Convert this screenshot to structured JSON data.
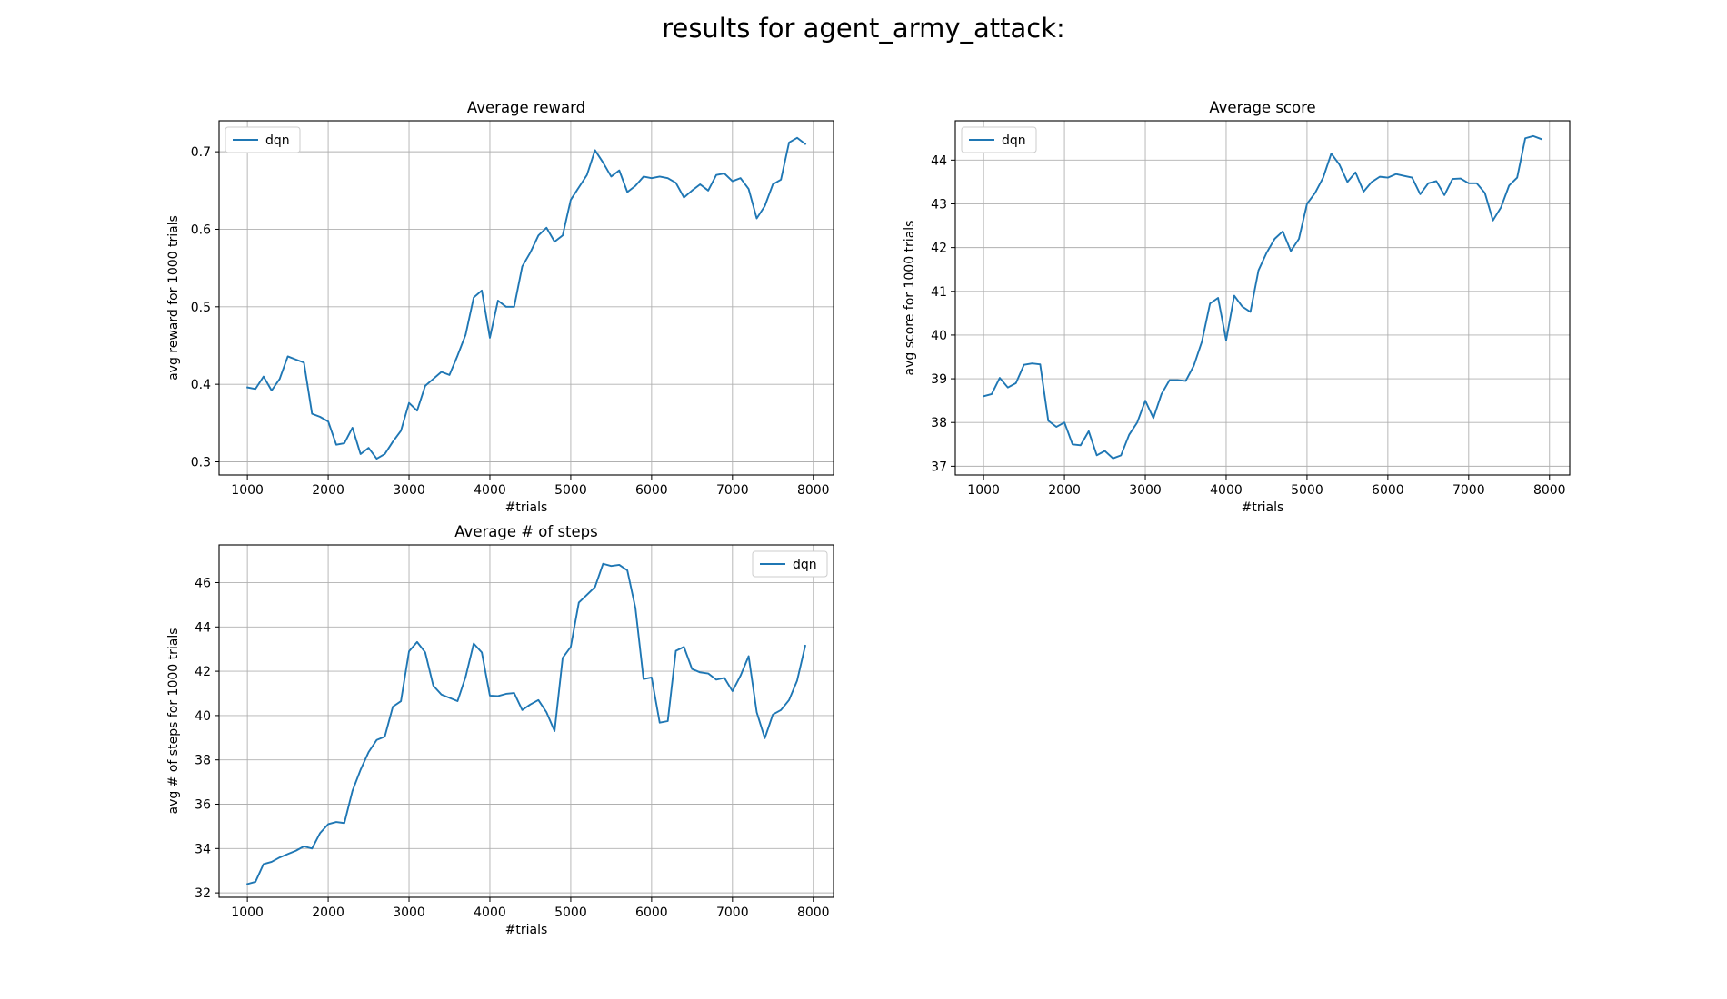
{
  "suptitle": "results for agent_army_attack:",
  "colors": {
    "series": "#1f77b4",
    "grid": "#b0b0b0",
    "frame": "#000000"
  },
  "chart_data": [
    {
      "type": "line",
      "title": "Average reward",
      "xlabel": "#trials",
      "ylabel": "avg reward for 1000 trials",
      "xlim": [
        650,
        8250
      ],
      "ylim": [
        0.283,
        0.74
      ],
      "xticks": [
        1000,
        2000,
        3000,
        4000,
        5000,
        6000,
        7000,
        8000
      ],
      "yticks": [
        0.3,
        0.4,
        0.5,
        0.6,
        0.7
      ],
      "ytick_labels": [
        "0.3",
        "0.4",
        "0.5",
        "0.6",
        "0.7"
      ],
      "grid": true,
      "legend_loc": "top-left",
      "series": [
        {
          "name": "dqn",
          "x": [
            1000,
            1100,
            1200,
            1300,
            1400,
            1500,
            1600,
            1700,
            1800,
            1900,
            2000,
            2100,
            2200,
            2300,
            2400,
            2500,
            2600,
            2700,
            2800,
            2900,
            3000,
            3100,
            3200,
            3300,
            3400,
            3500,
            3600,
            3700,
            3800,
            3900,
            4000,
            4100,
            4200,
            4300,
            4400,
            4500,
            4600,
            4700,
            4800,
            4900,
            5000,
            5100,
            5200,
            5300,
            5400,
            5500,
            5600,
            5700,
            5800,
            5900,
            6000,
            6100,
            6200,
            6300,
            6400,
            6500,
            6600,
            6700,
            6800,
            6900,
            7000,
            7100,
            7200,
            7300,
            7400,
            7500,
            7600,
            7700,
            7800,
            7900
          ],
          "values": [
            0.396,
            0.394,
            0.41,
            0.392,
            0.407,
            0.436,
            0.432,
            0.428,
            0.362,
            0.358,
            0.352,
            0.322,
            0.324,
            0.344,
            0.31,
            0.318,
            0.304,
            0.31,
            0.326,
            0.34,
            0.376,
            0.366,
            0.398,
            0.407,
            0.416,
            0.412,
            0.437,
            0.464,
            0.512,
            0.521,
            0.46,
            0.508,
            0.5,
            0.5,
            0.552,
            0.57,
            0.592,
            0.602,
            0.584,
            0.592,
            0.638,
            0.654,
            0.67,
            0.702,
            0.686,
            0.668,
            0.676,
            0.648,
            0.656,
            0.668,
            0.666,
            0.668,
            0.666,
            0.66,
            0.641,
            0.65,
            0.658,
            0.65,
            0.67,
            0.672,
            0.662,
            0.666,
            0.652,
            0.614,
            0.63,
            0.658,
            0.664,
            0.712,
            0.718,
            0.71
          ]
        }
      ]
    },
    {
      "type": "line",
      "title": "Average score",
      "xlabel": "#trials",
      "ylabel": "avg score for 1000 trials",
      "xlim": [
        650,
        8250
      ],
      "ylim": [
        36.8,
        44.9
      ],
      "xticks": [
        1000,
        2000,
        3000,
        4000,
        5000,
        6000,
        7000,
        8000
      ],
      "yticks": [
        37,
        38,
        39,
        40,
        41,
        42,
        43,
        44
      ],
      "ytick_labels": [
        "37",
        "38",
        "39",
        "40",
        "41",
        "42",
        "43",
        "44"
      ],
      "grid": true,
      "legend_loc": "top-left",
      "series": [
        {
          "name": "dqn",
          "x": [
            1000,
            1100,
            1200,
            1300,
            1400,
            1500,
            1600,
            1700,
            1800,
            1900,
            2000,
            2100,
            2200,
            2300,
            2400,
            2500,
            2600,
            2700,
            2800,
            2900,
            3000,
            3100,
            3200,
            3300,
            3400,
            3500,
            3600,
            3700,
            3800,
            3900,
            4000,
            4100,
            4200,
            4300,
            4400,
            4500,
            4600,
            4700,
            4800,
            4900,
            5000,
            5100,
            5200,
            5300,
            5400,
            5500,
            5600,
            5700,
            5800,
            5900,
            6000,
            6100,
            6200,
            6300,
            6400,
            6500,
            6600,
            6700,
            6800,
            6900,
            7000,
            7100,
            7200,
            7300,
            7400,
            7500,
            7600,
            7700,
            7800,
            7900
          ],
          "values": [
            38.6,
            38.65,
            39.02,
            38.8,
            38.9,
            39.32,
            39.35,
            39.33,
            38.04,
            37.9,
            38.0,
            37.5,
            37.48,
            37.8,
            37.25,
            37.35,
            37.18,
            37.25,
            37.72,
            38.0,
            38.5,
            38.1,
            38.65,
            38.97,
            38.97,
            38.95,
            39.3,
            39.85,
            40.72,
            40.85,
            39.88,
            40.9,
            40.65,
            40.53,
            41.48,
            41.88,
            42.2,
            42.37,
            41.92,
            42.2,
            43.0,
            43.25,
            43.6,
            44.15,
            43.9,
            43.5,
            43.72,
            43.28,
            43.5,
            43.62,
            43.6,
            43.68,
            43.64,
            43.6,
            43.22,
            43.47,
            43.52,
            43.2,
            43.57,
            43.58,
            43.47,
            43.47,
            43.25,
            42.62,
            42.92,
            43.42,
            43.6,
            44.5,
            44.55,
            44.48
          ]
        }
      ]
    },
    {
      "type": "line",
      "title": "Average # of steps",
      "xlabel": "#trials",
      "ylabel": "avg # of steps for 1000 trials",
      "xlim": [
        650,
        8250
      ],
      "ylim": [
        31.8,
        47.7
      ],
      "xticks": [
        1000,
        2000,
        3000,
        4000,
        5000,
        6000,
        7000,
        8000
      ],
      "yticks": [
        32,
        34,
        36,
        38,
        40,
        42,
        44,
        46
      ],
      "ytick_labels": [
        "32",
        "34",
        "36",
        "38",
        "40",
        "42",
        "44",
        "46"
      ],
      "grid": true,
      "legend_loc": "top-right",
      "series": [
        {
          "name": "dqn",
          "x": [
            1000,
            1100,
            1200,
            1300,
            1400,
            1500,
            1600,
            1700,
            1800,
            1900,
            2000,
            2100,
            2200,
            2300,
            2400,
            2500,
            2600,
            2700,
            2800,
            2900,
            3000,
            3100,
            3200,
            3300,
            3400,
            3500,
            3600,
            3700,
            3800,
            3900,
            4000,
            4100,
            4200,
            4300,
            4400,
            4500,
            4600,
            4700,
            4800,
            4900,
            5000,
            5100,
            5200,
            5300,
            5400,
            5500,
            5600,
            5700,
            5800,
            5900,
            6000,
            6100,
            6200,
            6300,
            6400,
            6500,
            6600,
            6700,
            6800,
            6900,
            7000,
            7100,
            7200,
            7300,
            7400,
            7500,
            7600,
            7700,
            7800,
            7900
          ],
          "values": [
            32.4,
            32.5,
            33.3,
            33.4,
            33.6,
            33.75,
            33.9,
            34.1,
            34.0,
            34.7,
            35.1,
            35.2,
            35.15,
            36.6,
            37.55,
            38.35,
            38.9,
            39.05,
            40.4,
            40.65,
            42.9,
            43.32,
            42.85,
            41.35,
            40.95,
            40.8,
            40.65,
            41.75,
            43.25,
            42.85,
            40.9,
            40.88,
            40.98,
            41.02,
            40.25,
            40.5,
            40.7,
            40.15,
            39.3,
            42.6,
            43.1,
            45.1,
            45.45,
            45.8,
            46.85,
            46.75,
            46.8,
            46.55,
            44.85,
            41.65,
            41.72,
            39.68,
            39.75,
            42.92,
            43.1,
            42.1,
            41.95,
            41.9,
            41.62,
            41.7,
            41.1,
            41.8,
            42.68,
            40.15,
            38.98,
            40.05,
            40.25,
            40.7,
            41.58,
            43.15
          ]
        }
      ]
    }
  ]
}
